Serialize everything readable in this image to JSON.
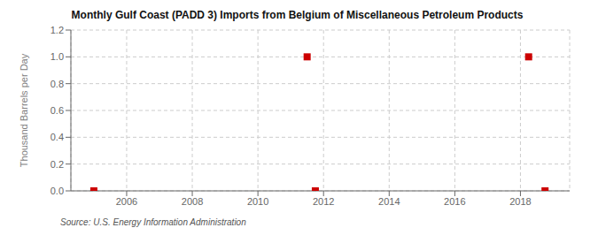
{
  "chart_data": {
    "type": "scatter",
    "title": "Monthly Gulf Coast (PADD 3) Imports from Belgium of Miscellaneous Petroleum Products",
    "ylabel": "Thousand Barrels per Day",
    "annotations": [
      "Source: U.S. Energy Information Administration"
    ],
    "x": [
      2005.0,
      2011.5,
      2011.75,
      2018.25,
      2018.75
    ],
    "values": [
      0.0,
      1.0,
      0.0,
      1.0,
      0.0
    ],
    "color": "#cc0000",
    "marker": "square",
    "xlim": [
      2004.3,
      2019.5
    ],
    "ylim": [
      0.0,
      1.2
    ],
    "xticks": [
      2006,
      2008,
      2010,
      2012,
      2014,
      2016,
      2018
    ],
    "yticks": [
      {
        "value": 0,
        "label": "0.0"
      },
      0.2,
      0.4,
      0.6,
      0.8,
      {
        "value": 1,
        "label": "1.0"
      },
      1.2
    ],
    "grid": true
  }
}
